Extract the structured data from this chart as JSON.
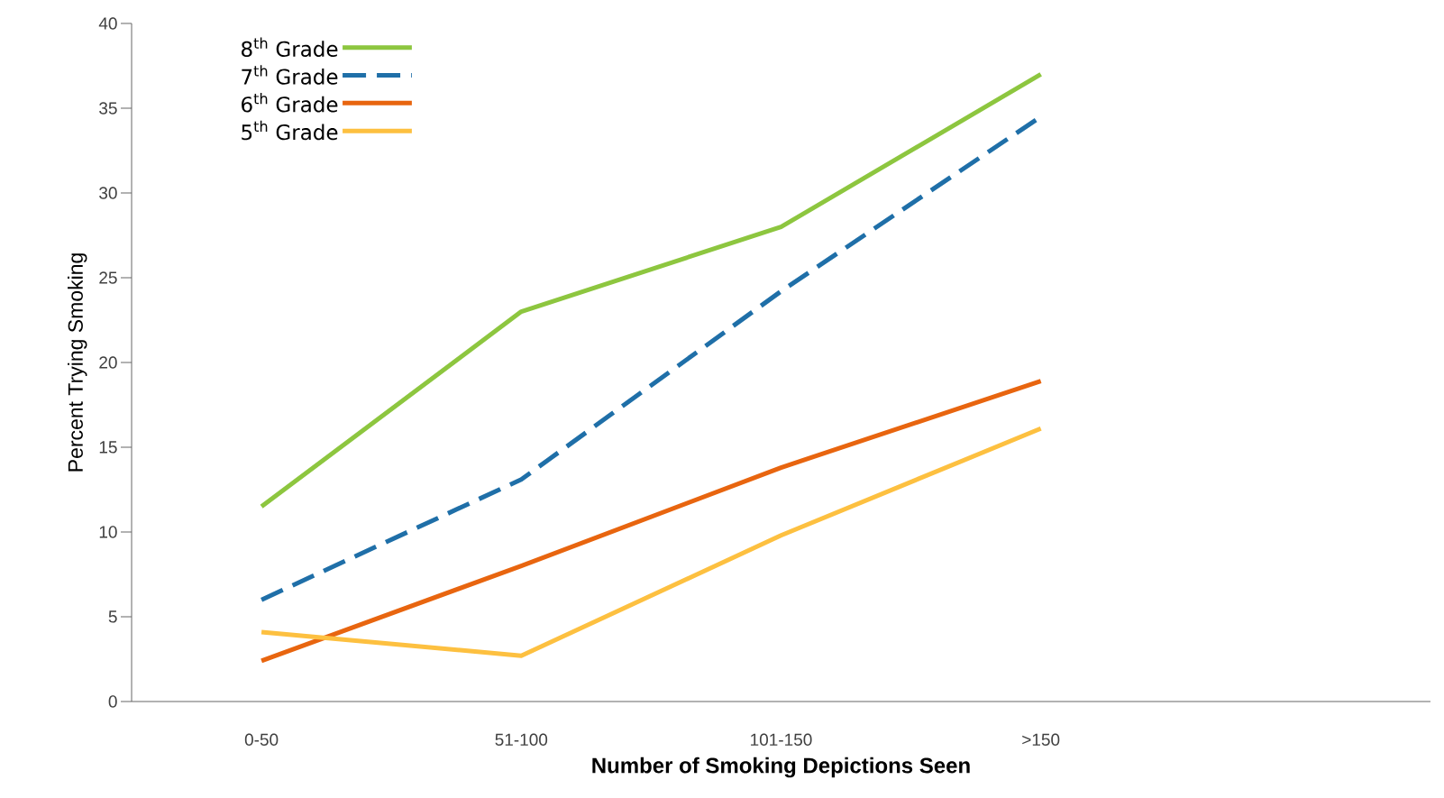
{
  "chart_data": {
    "type": "line",
    "xlabel": "Number of Smoking Depictions Seen",
    "ylabel": "Percent Trying Smoking",
    "categories": [
      "0-50",
      "51-100",
      "101-150",
      ">150"
    ],
    "series": [
      {
        "name": "8$^{th}$ Grade",
        "color": "#8dc63f",
        "line_style": "solid",
        "values": [
          11.5,
          23,
          28,
          37
        ]
      },
      {
        "name": "7$^{th}$ Grade",
        "color": "#1f6fa8",
        "line_style": "dashed",
        "values": [
          6,
          13.1,
          24.2,
          34.5
        ]
      },
      {
        "name": "6$^{th}$ Grade",
        "color": "#e8650f",
        "line_style": "solid",
        "values": [
          2.4,
          8,
          13.8,
          18.9
        ]
      },
      {
        "name": "5$^{th}$ Grade",
        "color": "#fdc040",
        "line_style": "solid",
        "values": [
          4.1,
          2.7,
          9.8,
          16.1
        ]
      }
    ],
    "ylim": [
      0,
      40
    ],
    "yticks": [
      0,
      5,
      10,
      15,
      20,
      25,
      30,
      35,
      40
    ],
    "legend": "top left",
    "grid": false,
    "marker": "none"
  }
}
